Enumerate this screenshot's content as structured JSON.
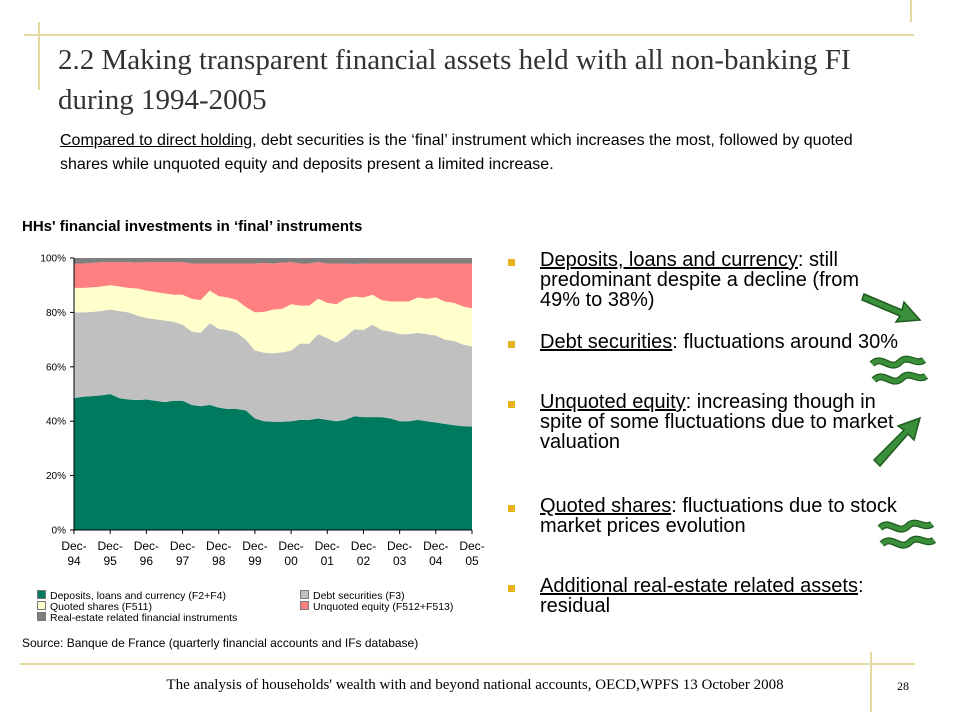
{
  "slide": {
    "title": "2.2 Making transparent financial assets held with all non-banking FI during 1994-2005",
    "subtitle_lead": "Compared to direct holding",
    "subtitle_rest": ", debt securities is the ‘final’ instrument which increases the most, followed by quoted shares while unquoted equity and deposits present a limited increase.",
    "footer": "The analysis of households' wealth with and beyond national accounts, OECD,WPFS 13 October 2008",
    "page_number": "28"
  },
  "chart_data": {
    "type": "area",
    "stacked": true,
    "percent": true,
    "title": "HHs' financial investments in ‘final’ instruments",
    "ylim": [
      0,
      100
    ],
    "y_ticks": [
      "0%",
      "20%",
      "40%",
      "60%",
      "80%",
      "100%"
    ],
    "x_ticks": [
      {
        "top": "Dec-",
        "bottom": "94"
      },
      {
        "top": "Dec-",
        "bottom": "95"
      },
      {
        "top": "Dec-",
        "bottom": "96"
      },
      {
        "top": "Dec-",
        "bottom": "97"
      },
      {
        "top": "Dec-",
        "bottom": "98"
      },
      {
        "top": "Dec-",
        "bottom": "99"
      },
      {
        "top": "Dec-",
        "bottom": "00"
      },
      {
        "top": "Dec-",
        "bottom": "01"
      },
      {
        "top": "Dec-",
        "bottom": "02"
      },
      {
        "top": "Dec-",
        "bottom": "03"
      },
      {
        "top": "Dec-",
        "bottom": "04"
      },
      {
        "top": "Dec-",
        "bottom": "05"
      }
    ],
    "x": [
      1994.92,
      1995.17,
      1995.42,
      1995.67,
      1995.92,
      1996.17,
      1996.42,
      1996.67,
      1996.92,
      1997.17,
      1997.42,
      1997.67,
      1997.92,
      1998.17,
      1998.42,
      1998.67,
      1998.92,
      1999.17,
      1999.42,
      1999.67,
      1999.92,
      2000.17,
      2000.42,
      2000.67,
      2000.92,
      2001.17,
      2001.42,
      2001.67,
      2001.92,
      2002.17,
      2002.42,
      2002.67,
      2002.92,
      2003.17,
      2003.42,
      2003.67,
      2003.92,
      2004.17,
      2004.42,
      2004.67,
      2004.92,
      2005.17,
      2005.42,
      2005.67,
      2005.92
    ],
    "series": [
      {
        "name": "Deposits, loans and currency (F2+F4)",
        "color": "#007a5e",
        "values": [
          48.5,
          49,
          49.2,
          49.5,
          50,
          48.5,
          48,
          47.8,
          48,
          47.5,
          47,
          47.5,
          47.5,
          46,
          45.5,
          46,
          45,
          44.5,
          44.5,
          44,
          41,
          40,
          39.8,
          39.8,
          40,
          40.5,
          40.5,
          41,
          40.5,
          40,
          40.5,
          41.8,
          41.5,
          41.5,
          41.5,
          41,
          40,
          40,
          40.5,
          40,
          39.5,
          39,
          38.5,
          38.2,
          38
        ]
      },
      {
        "name": "Debt securities (F3)",
        "color": "#c0c0c0",
        "values": [
          31.5,
          31,
          31,
          31,
          31,
          32,
          32,
          31,
          30,
          30,
          30,
          29,
          28,
          27,
          27,
          30,
          29,
          29,
          28,
          26,
          25,
          25.2,
          25.2,
          25.5,
          26,
          28,
          28,
          31,
          30,
          29,
          30.5,
          32,
          32,
          34,
          32,
          32,
          32,
          32,
          32,
          32,
          32,
          31,
          31,
          30,
          29.5
        ]
      },
      {
        "name": "Quoted shares (F511)",
        "color": "#ffffcc",
        "values": [
          9,
          9,
          9,
          9,
          9,
          9,
          9,
          10,
          10,
          10,
          10,
          10,
          11,
          12,
          12,
          12,
          12,
          12,
          12,
          12,
          14,
          15,
          16,
          16,
          17,
          14,
          14,
          13,
          13,
          14,
          14,
          12,
          12,
          11,
          11,
          11,
          12,
          12,
          13,
          13,
          14,
          14,
          14,
          14,
          14
        ]
      },
      {
        "name": "Unquoted equity (F512+F513)",
        "color": "#ff8080",
        "values": [
          9,
          9,
          9,
          9,
          8.5,
          9,
          9.5,
          9.5,
          10.5,
          11,
          11.5,
          12,
          12,
          13,
          13.5,
          10,
          12,
          12.5,
          13.5,
          16,
          18,
          18,
          17,
          17,
          15.5,
          15.5,
          15.5,
          13.5,
          14.5,
          15,
          13,
          12,
          12.5,
          11.5,
          13.5,
          14,
          14,
          14,
          12.5,
          13,
          12.5,
          14,
          14.5,
          15.8,
          16.5
        ]
      },
      {
        "name": "Real-estate related financial instruments",
        "color": "#7f7f7f",
        "values": [
          2,
          2,
          1.8,
          1.5,
          1.5,
          1.5,
          1.5,
          1.7,
          1.5,
          1.5,
          1.5,
          1.5,
          1.5,
          2,
          2,
          2,
          2,
          2,
          2,
          2,
          2,
          1.8,
          2,
          1.7,
          1.5,
          2,
          2,
          1.5,
          2,
          2,
          2,
          2.2,
          2,
          2,
          2,
          2,
          2,
          2,
          2,
          2,
          2,
          2,
          2,
          2,
          2
        ]
      }
    ],
    "legend_position": "bottom",
    "grid": false,
    "source": "Source: Banque de France (quarterly financial accounts and IFs database)"
  },
  "bullets": [
    {
      "lead": "Deposits, loans and currency",
      "rest": ": still predominant despite a decline (from 49% to 38%)",
      "symbol": "arrow-down-right"
    },
    {
      "lead": "Debt securities",
      "rest": ": fluctuations around 30%",
      "symbol": "wave"
    },
    {
      "lead": "Unquoted equity",
      "rest": ": increasing though in spite of some fluctuations due to market valuation",
      "symbol": "arrow-up-right"
    },
    {
      "lead": "Quoted shares",
      "rest": ": fluctuations due to stock market prices evolution",
      "symbol": "wave"
    },
    {
      "lead": "Additional real-estate related assets",
      "rest": ": residual",
      "symbol": ""
    }
  ],
  "colors": {
    "bullet_square": "#e6b31e",
    "trend_symbol": "#3a8f3a",
    "decoration": "#e4d9a0"
  }
}
